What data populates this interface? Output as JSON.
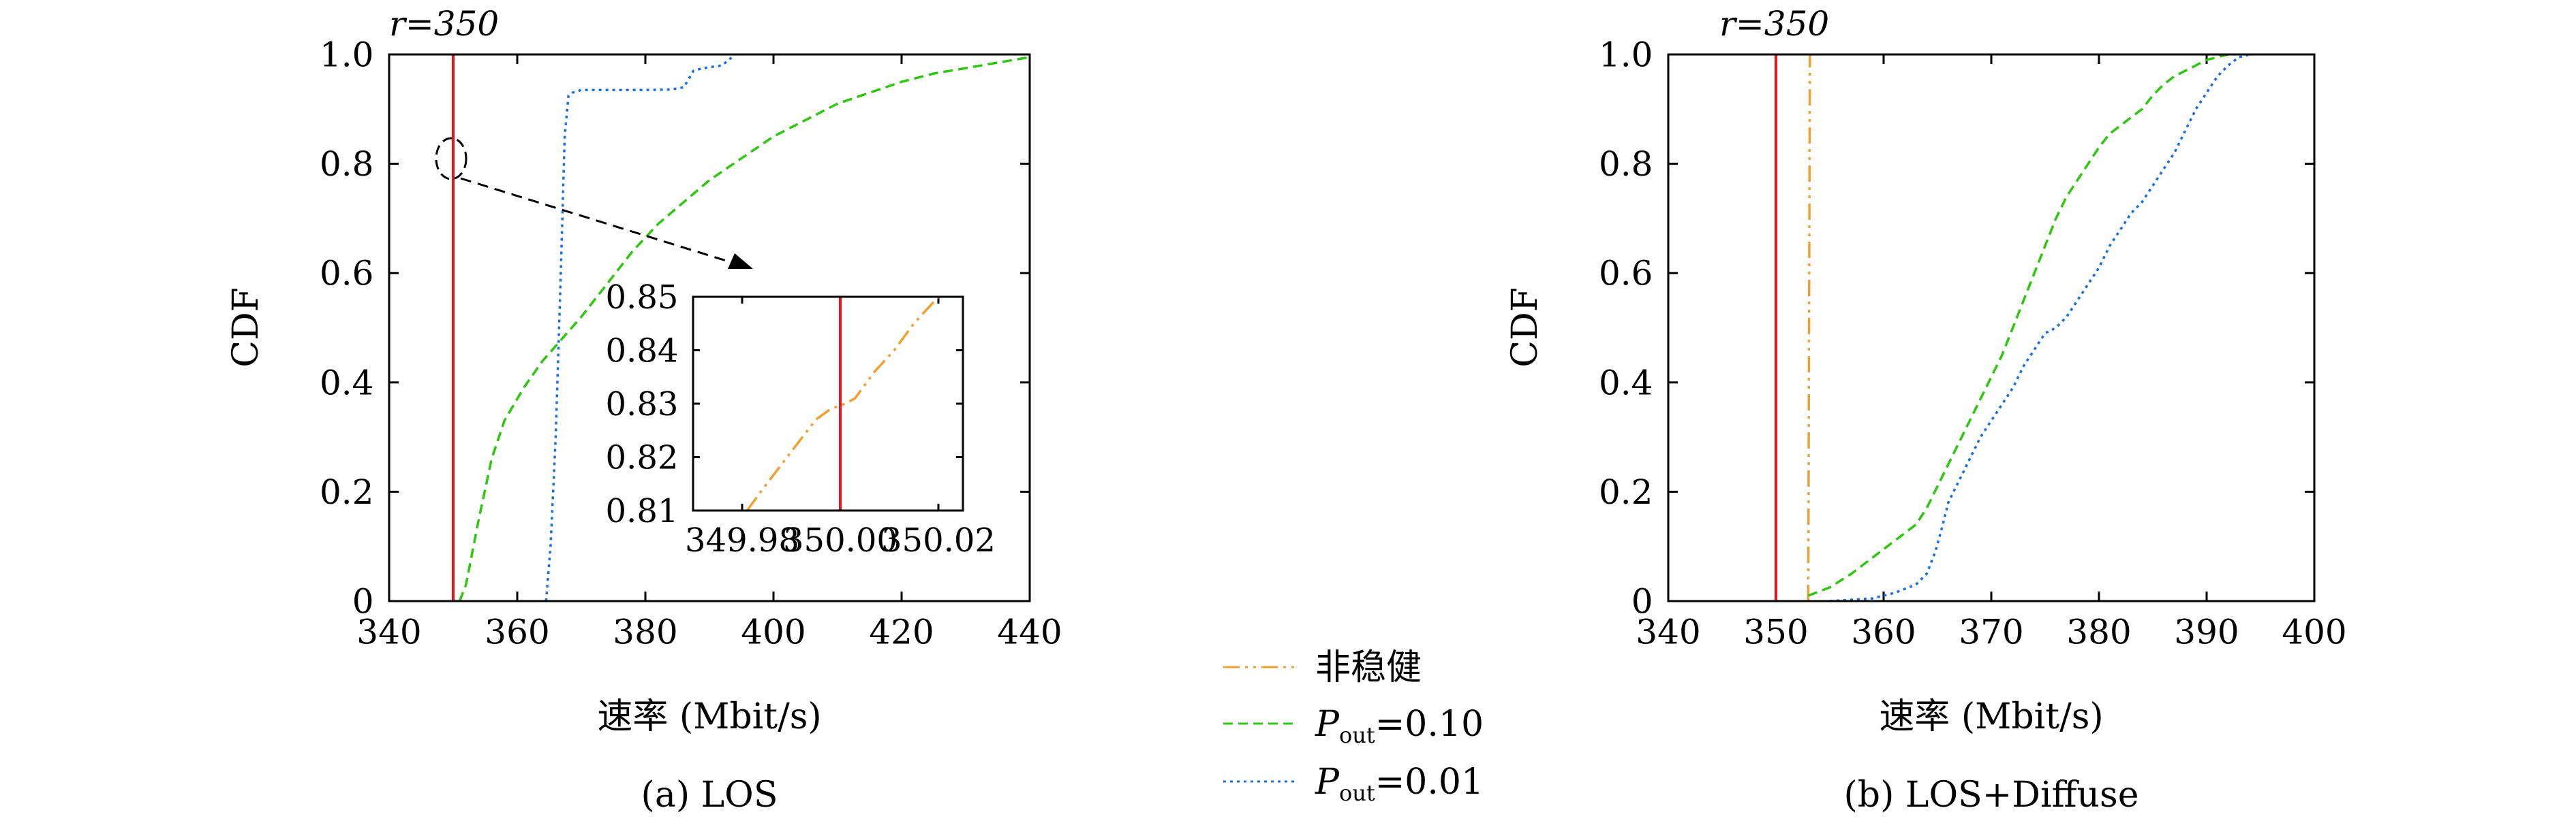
{
  "colors": {
    "threshold": "#e8161b",
    "non_robust": "#f0a030",
    "pout_010": "#2fc60f",
    "pout_001": "#1a6fe0"
  },
  "legend": {
    "items": [
      {
        "label": "非稳健",
        "key": "non_robust"
      },
      {
        "label_main": "P",
        "label_sub": "out",
        "label_value": "=0.10",
        "key": "pout_010"
      },
      {
        "label_main": "P",
        "label_sub": "out",
        "label_value": "=0.01",
        "key": "pout_001"
      }
    ]
  },
  "chart_data": [
    {
      "type": "line",
      "caption": "(a) LOS",
      "xlabel": "速率 (Mbit/s)",
      "ylabel": "CDF",
      "xlim": [
        340,
        440
      ],
      "ylim": [
        0,
        1
      ],
      "xticks": [
        "340",
        "360",
        "380",
        "400",
        "420",
        "440"
      ],
      "yticks": [
        "0",
        "0.2",
        "0.4",
        "0.6",
        "0.8",
        "1.0"
      ],
      "xtick_values": [
        340,
        360,
        380,
        400,
        420,
        440
      ],
      "ytick_values": [
        0,
        0.2,
        0.4,
        0.6,
        0.8,
        1.0
      ],
      "annotation": "r=350",
      "threshold_x": 350,
      "series": [
        {
          "key": "non_robust",
          "x": [
            349.99,
            350.01
          ],
          "y": [
            0,
            1
          ]
        },
        {
          "key": "pout_010",
          "x": [
            351,
            352,
            354,
            356,
            358,
            361,
            364,
            367,
            370,
            374,
            378,
            382,
            386,
            390,
            395,
            400,
            405,
            410,
            415,
            420,
            425,
            430,
            435,
            440
          ],
          "y": [
            0,
            0.03,
            0.15,
            0.26,
            0.33,
            0.39,
            0.44,
            0.48,
            0.52,
            0.58,
            0.64,
            0.69,
            0.73,
            0.77,
            0.81,
            0.85,
            0.88,
            0.91,
            0.93,
            0.95,
            0.965,
            0.975,
            0.985,
            0.995
          ]
        },
        {
          "key": "pout_001",
          "x": [
            364.5,
            365.2,
            366,
            366.8,
            367.4,
            368,
            368.6,
            370,
            375,
            380,
            384,
            386,
            387.5,
            389,
            392,
            394
          ],
          "y": [
            0,
            0.1,
            0.3,
            0.6,
            0.85,
            0.925,
            0.93,
            0.935,
            0.935,
            0.935,
            0.936,
            0.94,
            0.97,
            0.975,
            0.98,
            1.0
          ]
        }
      ],
      "inset": {
        "xlim": [
          349.97,
          350.025
        ],
        "ylim": [
          0.81,
          0.85
        ],
        "xticks": [
          "349.98",
          "350.00",
          "350.02"
        ],
        "yticks": [
          "0.81",
          "0.82",
          "0.83",
          "0.84",
          "0.85"
        ],
        "xtick_values": [
          349.98,
          350.0,
          350.02
        ],
        "ytick_values": [
          0.81,
          0.82,
          0.83,
          0.84,
          0.85
        ],
        "threshold_x": 350.0,
        "series": [
          {
            "key": "non_robust",
            "x": [
              349.981,
              349.985,
              349.99,
              349.995,
              349.998,
              350.001,
              350.003,
              350.007,
              350.011,
              350.015,
              350.02
            ],
            "y": [
              0.81,
              0.815,
              0.821,
              0.827,
              0.829,
              0.83,
              0.831,
              0.836,
              0.84,
              0.845,
              0.85
            ]
          }
        ]
      }
    },
    {
      "type": "line",
      "caption": "(b) LOS+Diffuse",
      "xlabel": "速率 (Mbit/s)",
      "ylabel": "CDF",
      "xlim": [
        340,
        400
      ],
      "ylim": [
        0,
        1
      ],
      "xticks": [
        "340",
        "350",
        "360",
        "370",
        "380",
        "390",
        "400"
      ],
      "yticks": [
        "0",
        "0.2",
        "0.4",
        "0.6",
        "0.8",
        "1.0"
      ],
      "xtick_values": [
        340,
        350,
        360,
        370,
        380,
        390,
        400
      ],
      "ytick_values": [
        0,
        0.2,
        0.4,
        0.6,
        0.8,
        1.0
      ],
      "annotation": "r=350",
      "threshold_x": 350,
      "series": [
        {
          "key": "non_robust",
          "x": [
            353,
            353.15
          ],
          "y": [
            0,
            1
          ]
        },
        {
          "key": "pout_010",
          "x": [
            353,
            355,
            357,
            359,
            361,
            363,
            364,
            365,
            366,
            367,
            368,
            369,
            370,
            371,
            372,
            373,
            374,
            375,
            376,
            377,
            378,
            379,
            380,
            381,
            382,
            383,
            384,
            385,
            386,
            387,
            388,
            389,
            390,
            391,
            392
          ],
          "y": [
            0.01,
            0.025,
            0.05,
            0.08,
            0.11,
            0.14,
            0.17,
            0.21,
            0.25,
            0.29,
            0.33,
            0.37,
            0.41,
            0.45,
            0.5,
            0.55,
            0.6,
            0.65,
            0.7,
            0.74,
            0.77,
            0.8,
            0.83,
            0.855,
            0.87,
            0.885,
            0.9,
            0.925,
            0.945,
            0.96,
            0.97,
            0.98,
            0.99,
            0.995,
            1.0
          ]
        },
        {
          "key": "pout_001",
          "x": [
            355,
            359,
            361,
            363,
            364,
            364.8,
            365.5,
            366,
            367,
            368,
            369,
            370,
            371,
            372,
            373,
            374,
            375,
            376,
            377,
            378,
            379,
            380,
            381,
            382,
            383,
            384,
            385,
            386,
            387,
            388,
            389,
            390,
            391,
            392,
            393,
            394
          ],
          "y": [
            0,
            0.005,
            0.015,
            0.03,
            0.05,
            0.09,
            0.14,
            0.18,
            0.22,
            0.26,
            0.3,
            0.33,
            0.36,
            0.39,
            0.43,
            0.46,
            0.49,
            0.5,
            0.52,
            0.55,
            0.58,
            0.61,
            0.65,
            0.68,
            0.71,
            0.73,
            0.76,
            0.79,
            0.82,
            0.86,
            0.9,
            0.93,
            0.96,
            0.98,
            0.995,
            1.0
          ]
        }
      ]
    }
  ]
}
